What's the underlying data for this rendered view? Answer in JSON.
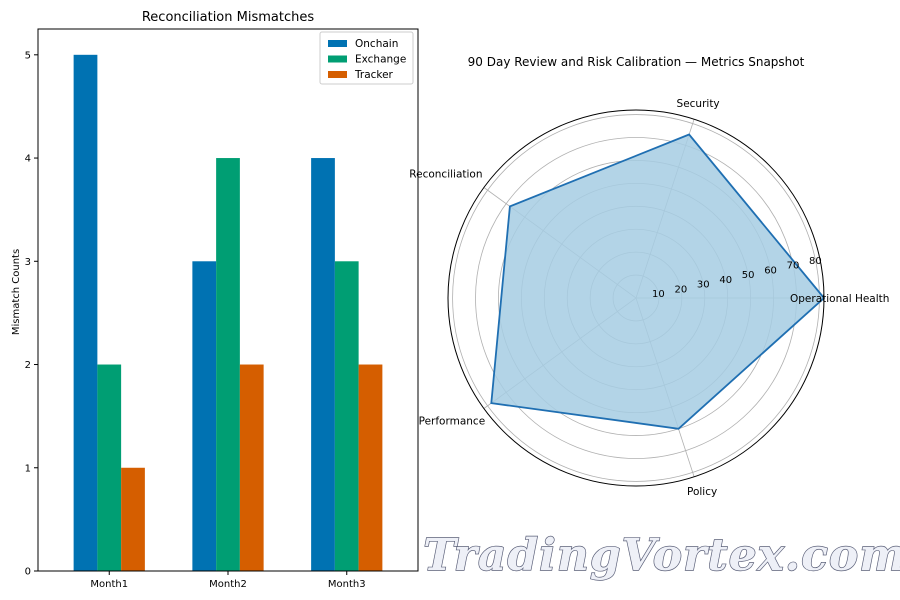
{
  "chart_data": [
    {
      "type": "bar",
      "title": "Reconciliation Mismatches",
      "xlabel": "",
      "ylabel": "Mismatch Counts",
      "categories": [
        "Month1",
        "Month2",
        "Month3"
      ],
      "series": [
        {
          "name": "Onchain",
          "values": [
            5,
            3,
            4
          ],
          "color": "#0072b2"
        },
        {
          "name": "Exchange",
          "values": [
            2,
            4,
            3
          ],
          "color": "#009e73"
        },
        {
          "name": "Tracker",
          "values": [
            1,
            2,
            2
          ],
          "color": "#d55e00"
        }
      ],
      "ylim": [
        0,
        5.25
      ],
      "yticks": [
        0,
        1,
        2,
        3,
        4,
        5
      ],
      "grid": false,
      "legend": "top-right"
    },
    {
      "type": "radar",
      "title": "90 Day Review and Risk Calibration — Metrics Snapshot",
      "axes": [
        "Operational Health",
        "Security",
        "Reconciliation",
        "Performance",
        "Policy"
      ],
      "values": [
        82,
        75,
        68,
        78,
        60
      ],
      "rlim": [
        0,
        82
      ],
      "rticks": [
        10,
        20,
        30,
        40,
        50,
        60,
        70,
        80
      ],
      "line_color": "#1f6fb2",
      "fill_color": "#a6cde3",
      "grid": true
    }
  ],
  "watermark": "TradingVortex.com"
}
